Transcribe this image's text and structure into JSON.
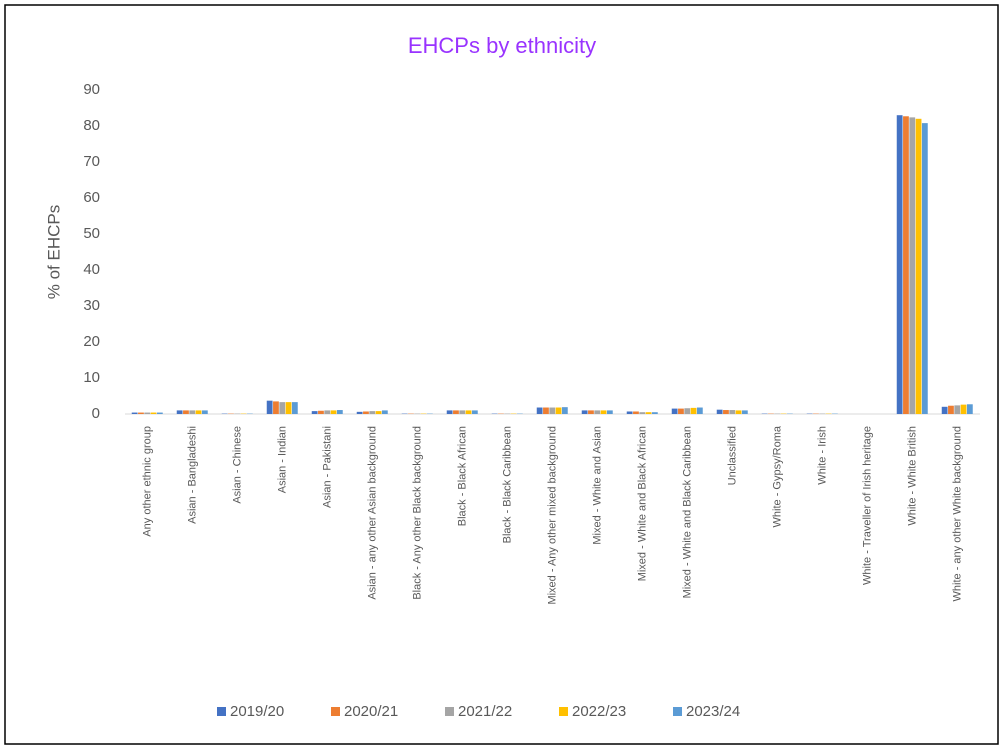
{
  "chart_data": {
    "type": "bar",
    "title": "EHCPs by ethnicity",
    "y_label": "% of EHCPs",
    "categories": [
      "Any other ethnic group",
      "Asian - Bangladeshi",
      "Asian - Chinese",
      "Asian - Indian",
      "Asian - Pakistani",
      "Asian - any other Asian background",
      "Black - Any other Black background",
      "Black - Black African",
      "Black - Black Caribbean",
      "Mixed - Any other mixed background",
      "Mixed - White and Asian",
      "Mixed - White and Black African",
      "Mixed - White and Black Caribbean",
      "Unclassified",
      "White - Gypsy/Roma",
      "White - Irish",
      "White - Traveller of Irish heritage",
      "White - White British",
      "White - any other White background"
    ],
    "series": [
      {
        "name": "2019/20",
        "color": "#4472c4",
        "values": [
          0.4,
          1.0,
          0.1,
          3.7,
          0.8,
          0.6,
          0.1,
          1.0,
          0.1,
          1.8,
          1.0,
          0.7,
          1.5,
          1.2,
          0.1,
          0.1,
          0.0,
          83.0,
          2.0
        ]
      },
      {
        "name": "2020/21",
        "color": "#ed7d31",
        "values": [
          0.4,
          1.0,
          0.1,
          3.5,
          0.9,
          0.7,
          0.1,
          1.0,
          0.1,
          1.8,
          1.0,
          0.7,
          1.5,
          1.1,
          0.1,
          0.1,
          0.0,
          82.7,
          2.3
        ]
      },
      {
        "name": "2021/22",
        "color": "#a5a5a5",
        "values": [
          0.4,
          1.0,
          0.1,
          3.3,
          1.0,
          0.8,
          0.1,
          1.0,
          0.1,
          1.8,
          1.0,
          0.5,
          1.6,
          1.1,
          0.1,
          0.1,
          0.0,
          82.4,
          2.4
        ]
      },
      {
        "name": "2022/23",
        "color": "#ffc000",
        "values": [
          0.4,
          1.0,
          0.1,
          3.3,
          1.0,
          0.8,
          0.1,
          1.0,
          0.1,
          1.8,
          1.0,
          0.5,
          1.7,
          1.0,
          0.1,
          0.1,
          0.0,
          82.0,
          2.6
        ]
      },
      {
        "name": "2023/24",
        "color": "#5b9bd5",
        "values": [
          0.4,
          1.0,
          0.1,
          3.3,
          1.1,
          1.0,
          0.1,
          1.0,
          0.1,
          1.9,
          1.0,
          0.5,
          1.8,
          1.0,
          0.1,
          0.1,
          0.0,
          80.8,
          2.7
        ]
      }
    ],
    "ylim": [
      0,
      90
    ],
    "yticks": [
      0,
      10,
      20,
      30,
      40,
      50,
      60,
      70,
      80,
      90
    ],
    "grid": false,
    "legend": "bottom",
    "title_color": "#9933ff"
  }
}
